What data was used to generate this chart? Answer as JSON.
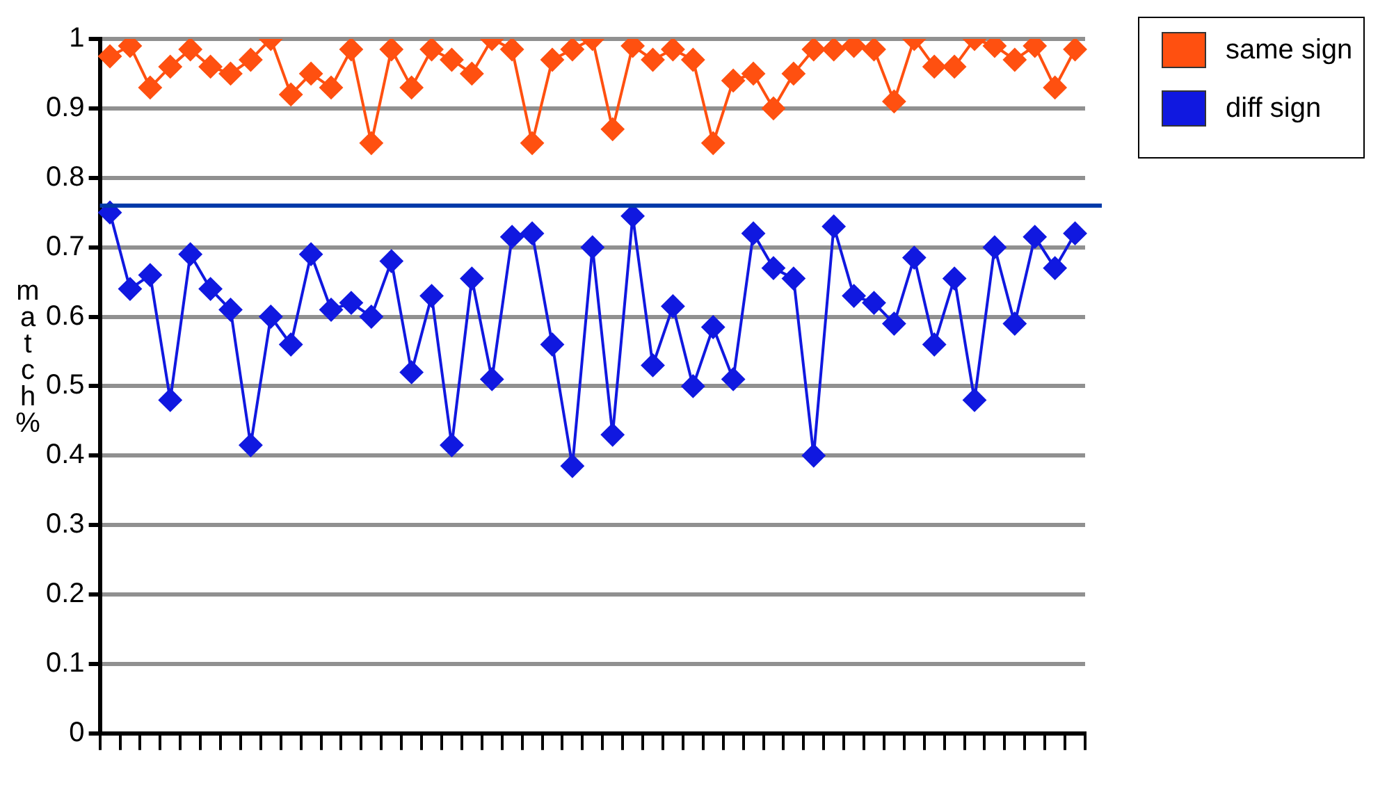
{
  "chart_data": {
    "type": "line",
    "ylabel": "match %",
    "categories": [
      null,
      null,
      null,
      null,
      null,
      null,
      null,
      null,
      null,
      null,
      null,
      null,
      null,
      null,
      null,
      null,
      null,
      null,
      null,
      null,
      null,
      null,
      null,
      null,
      null,
      null,
      null,
      null,
      null,
      null,
      null,
      null,
      null,
      null,
      null,
      null,
      null,
      null,
      null,
      null,
      null,
      null,
      null,
      null,
      null,
      null,
      null,
      null,
      null
    ],
    "series": [
      {
        "name": "same sign",
        "color": "#ff5010",
        "values": [
          0.975,
          0.99,
          0.93,
          0.96,
          0.985,
          0.96,
          0.95,
          0.97,
          1.0,
          0.92,
          0.95,
          0.93,
          0.985,
          0.85,
          0.985,
          0.93,
          0.985,
          0.97,
          0.95,
          1.0,
          0.985,
          0.85,
          0.97,
          0.985,
          1.0,
          0.87,
          0.99,
          0.97,
          0.985,
          0.97,
          0.85,
          0.94,
          0.95,
          0.9,
          0.95,
          0.985,
          0.985,
          0.99,
          0.985,
          0.91,
          1.0,
          0.96,
          0.96,
          1.0,
          0.99,
          0.97,
          0.99,
          0.93,
          0.985
        ]
      },
      {
        "name": "diff sign",
        "color": "#1018e0",
        "values": [
          0.75,
          0.64,
          0.66,
          0.48,
          0.69,
          0.64,
          0.61,
          0.415,
          0.6,
          0.56,
          0.69,
          0.61,
          0.62,
          0.6,
          0.68,
          0.52,
          0.63,
          0.415,
          0.655,
          0.51,
          0.715,
          0.72,
          0.56,
          0.385,
          0.7,
          0.43,
          0.745,
          0.53,
          0.615,
          0.5,
          0.585,
          0.51,
          0.72,
          0.67,
          0.655,
          0.4,
          0.73,
          0.63,
          0.62,
          0.59,
          0.685,
          0.56,
          0.655,
          0.48,
          0.7,
          0.59,
          0.715,
          0.67,
          0.72
        ]
      }
    ],
    "ref_lines": [
      {
        "axis": "y",
        "value": 0.76,
        "color": "#0038a8"
      }
    ],
    "ylim": [
      0,
      1
    ],
    "yticks": [
      0,
      0.1,
      0.2,
      0.3,
      0.4,
      0.5,
      0.6,
      0.7,
      0.8,
      0.9,
      1
    ],
    "grid": "y",
    "legend": "top right",
    "marker": "diamond",
    "line_style": "solid"
  }
}
